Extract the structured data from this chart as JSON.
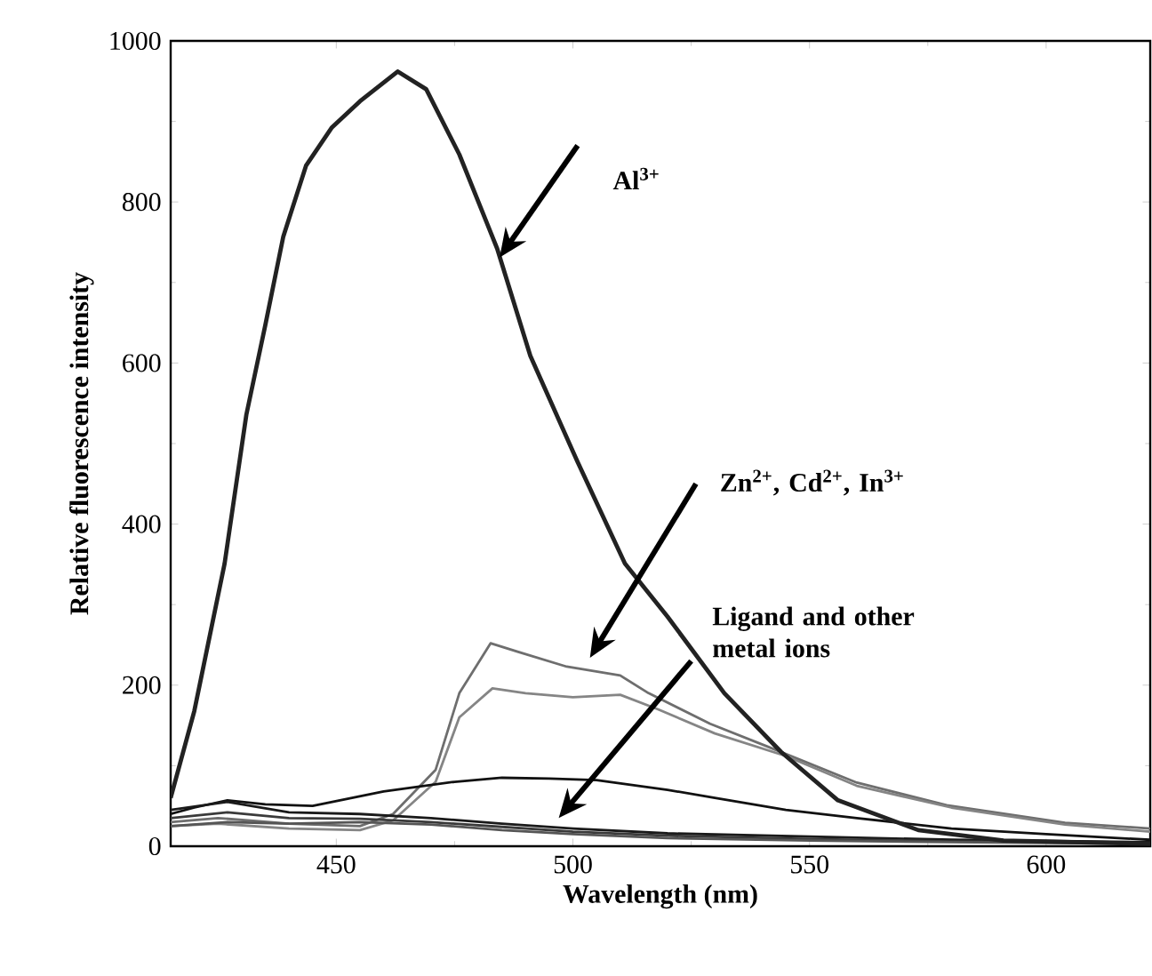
{
  "chart_data": {
    "type": "line",
    "xlabel": "Wavelength (nm)",
    "ylabel": "Relative fluorescence intensity",
    "xlim": [
      415,
      622
    ],
    "ylim": [
      0,
      1000
    ],
    "xticks": [
      450,
      500,
      550,
      600
    ],
    "yticks": [
      0,
      200,
      400,
      600,
      800,
      1000
    ],
    "grid": false,
    "marker": "none",
    "line_style": "solid",
    "series": [
      {
        "color": "#6e6e6e",
        "x": [
          415,
          425,
          440,
          455,
          462,
          471,
          476,
          482.6,
          488.6,
          498.7,
          510,
          516,
          529,
          541,
          560,
          579,
          604,
          622
        ],
        "values": [
          30,
          35,
          28,
          25,
          40,
          95,
          190,
          252,
          241,
          223,
          212,
          190,
          152,
          124,
          79,
          51,
          29,
          22
        ]
      },
      {
        "color": "#858585",
        "x": [
          415,
          425,
          440,
          455,
          462,
          471,
          476,
          483,
          490,
          500,
          510,
          518,
          530,
          545,
          560,
          580,
          604,
          622
        ],
        "values": [
          25,
          28,
          22,
          20,
          32,
          80,
          160,
          196,
          190,
          185,
          188,
          170,
          140,
          112,
          75,
          48,
          27,
          18
        ]
      },
      {
        "color": "#111111",
        "x": [
          415,
          420,
          427,
          435,
          445,
          460,
          475,
          485,
          495,
          505,
          520,
          530,
          545,
          560,
          580,
          600,
          622
        ],
        "values": [
          40,
          48,
          57,
          52,
          50,
          68,
          80,
          85,
          84,
          82,
          70,
          60,
          45,
          35,
          22,
          15,
          8
        ]
      },
      {
        "color": "#1a1a1a",
        "x": [
          415,
          427,
          440,
          455,
          470,
          485,
          500,
          520,
          550,
          580,
          622
        ],
        "values": [
          45,
          55,
          42,
          40,
          35,
          28,
          22,
          16,
          12,
          8,
          5
        ]
      },
      {
        "color": "#3a3a3a",
        "x": [
          415,
          427,
          440,
          455,
          470,
          485,
          500,
          520,
          550,
          580,
          622
        ],
        "values": [
          35,
          42,
          35,
          34,
          30,
          24,
          18,
          13,
          9,
          6,
          4
        ]
      },
      {
        "color": "#555555",
        "x": [
          415,
          427,
          440,
          455,
          470,
          485,
          500,
          520,
          550,
          580,
          622
        ],
        "values": [
          25,
          30,
          28,
          30,
          27,
          20,
          15,
          10,
          7,
          5,
          3
        ]
      },
      {
        "color": "#222222",
        "x": [
          415,
          420,
          426.4,
          431,
          435,
          438.8,
          443.6,
          449,
          455,
          463,
          469,
          476,
          484,
          491,
          501,
          511,
          520,
          532,
          544,
          556,
          573,
          591,
          622
        ],
        "values": [
          60,
          168,
          351,
          536,
          647,
          757,
          845,
          892,
          925,
          962,
          940,
          859,
          742,
          609,
          477,
          351,
          285,
          190,
          117,
          57,
          20,
          7,
          3
        ]
      }
    ],
    "annotations": [
      "Al$^{3+}$",
      "Zn$^{2+}$, Cd$^{2+}$, In$^{3+}$",
      "Ligand and other metal ions"
    ]
  }
}
